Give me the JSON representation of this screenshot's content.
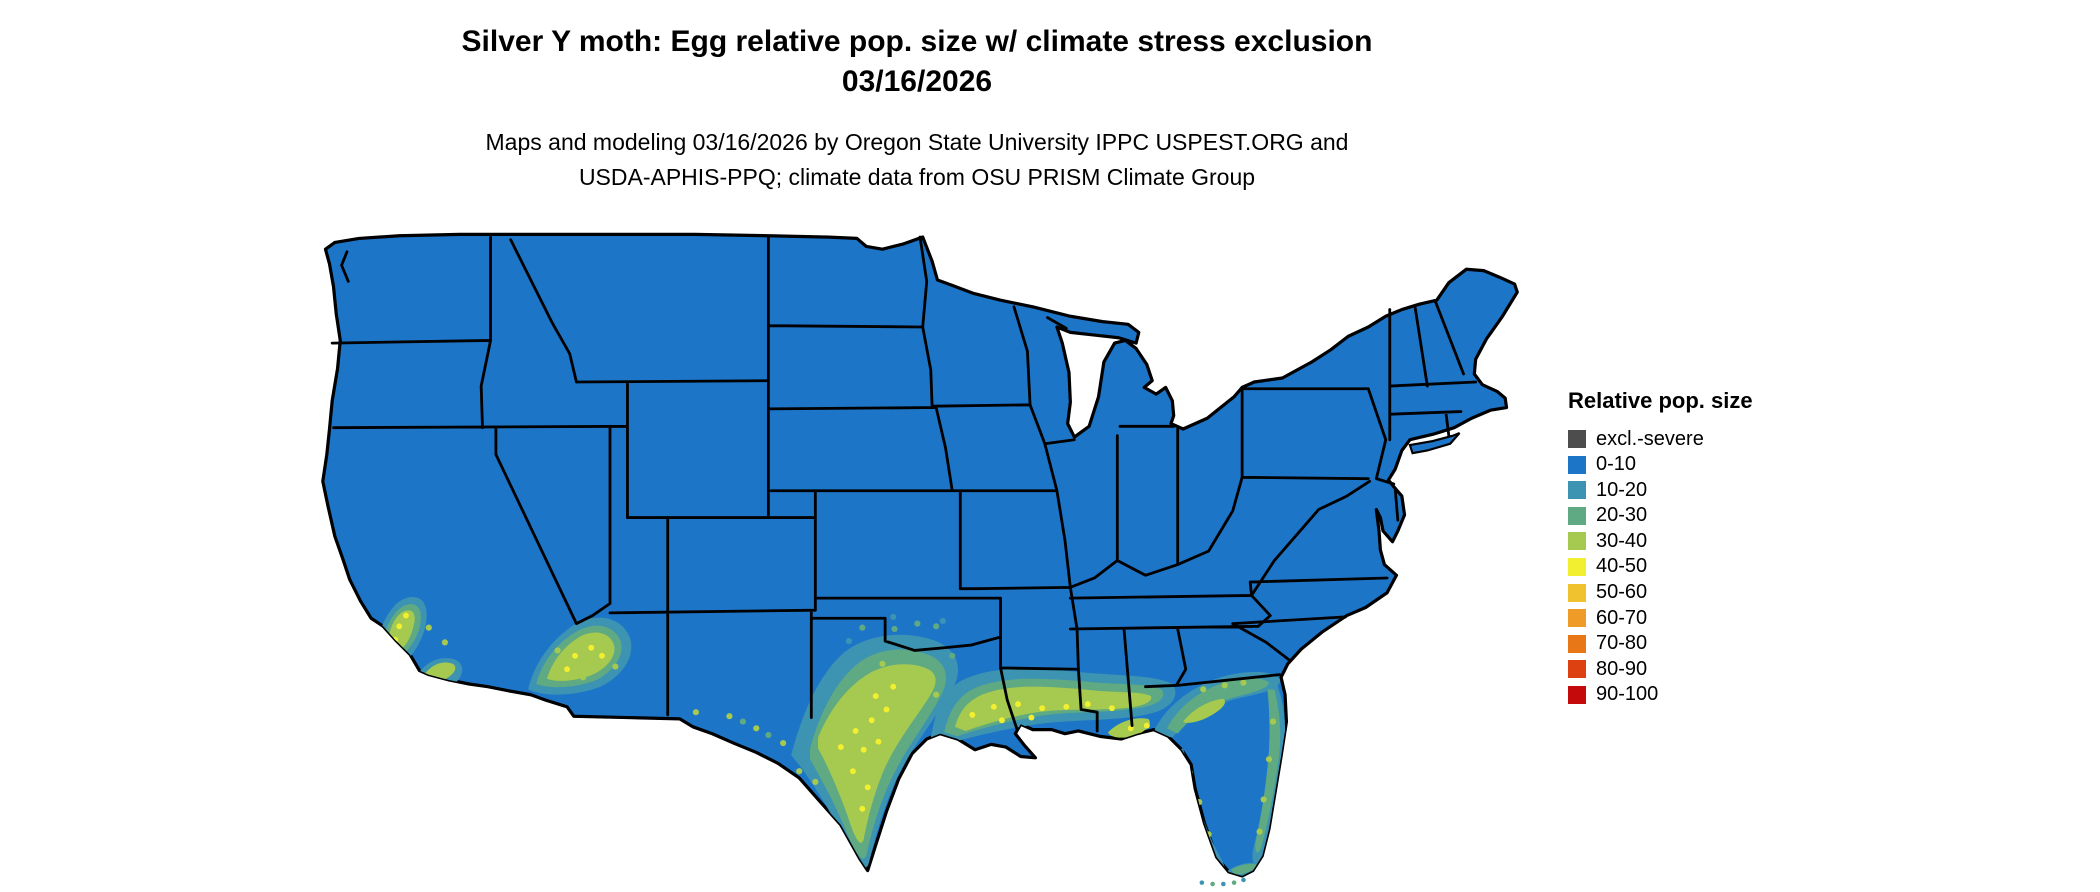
{
  "title": {
    "line1": "Silver Y moth: Egg relative pop. size w/ climate stress exclusion",
    "line2": "03/16/2026"
  },
  "subtitle": {
    "line1": "Maps and modeling 03/16/2026 by Oregon State University IPPC USPEST.ORG and",
    "line2": "USDA-APHIS-PPQ; climate data from OSU PRISM Climate Group"
  },
  "legend": {
    "heading": "Relative pop. size",
    "items": [
      {
        "label": "excl.-severe",
        "color": "#4d4d4d"
      },
      {
        "label": "0-10",
        "color": "#1d75c8"
      },
      {
        "label": "10-20",
        "color": "#3c93b2"
      },
      {
        "label": "20-30",
        "color": "#5fa983"
      },
      {
        "label": "30-40",
        "color": "#a6c94f"
      },
      {
        "label": "40-50",
        "color": "#f1ef2f"
      },
      {
        "label": "50-60",
        "color": "#f0c22f"
      },
      {
        "label": "60-70",
        "color": "#ef9b28"
      },
      {
        "label": "70-80",
        "color": "#e87717"
      },
      {
        "label": "80-90",
        "color": "#de4111"
      },
      {
        "label": "90-100",
        "color": "#c40a0a"
      }
    ]
  },
  "map": {
    "region": "Contiguous United States",
    "base_value_class": "0-10",
    "background": "#ffffff",
    "border_color": "#000000"
  }
}
